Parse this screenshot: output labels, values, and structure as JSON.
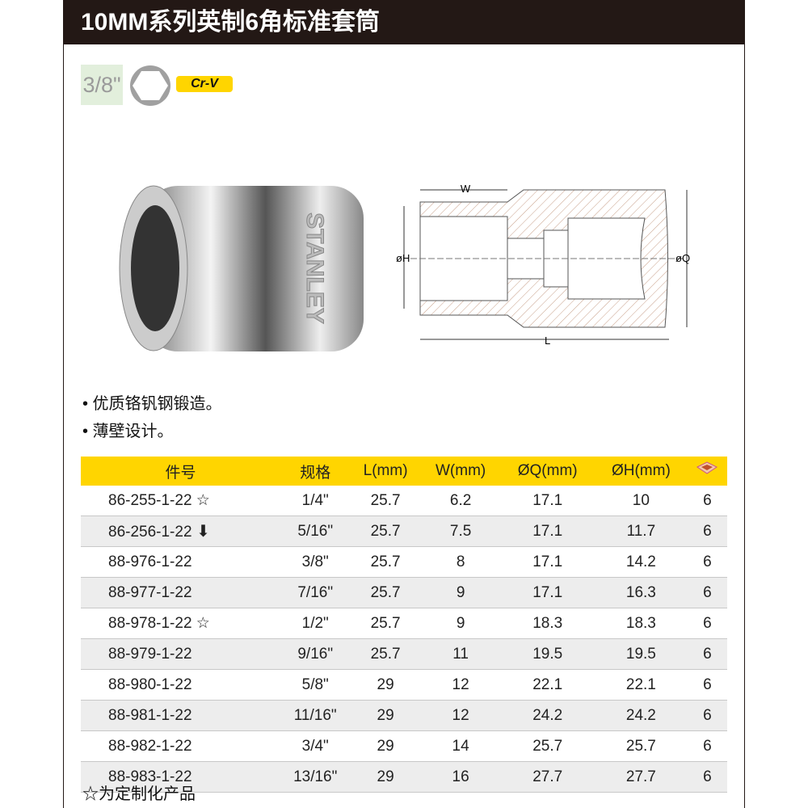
{
  "title": "10MM系列英制6角标准套筒",
  "drive_size": "3/8\"",
  "material_badge": "Cr-V",
  "features": [
    "• 优质铬钒钢锻造。",
    "• 薄壁设计。"
  ],
  "diagram_labels": {
    "w": "W",
    "h": "øH",
    "q": "øQ",
    "l": "L"
  },
  "brand": "STANLEY",
  "table": {
    "headers": [
      "件号",
      "规格",
      "L(mm)",
      "W(mm)",
      "ØQ(mm)",
      "ØH(mm)"
    ],
    "pack_icon": "box-icon",
    "rows": [
      [
        "86-255-1-22 ☆",
        "1/4\"",
        "25.7",
        "6.2",
        "17.1",
        "10",
        "6"
      ],
      [
        "86-256-1-22",
        "5/16\"",
        "25.7",
        "7.5",
        "17.1",
        "11.7",
        "6"
      ],
      [
        "88-976-1-22",
        "3/8\"",
        "25.7",
        "8",
        "17.1",
        "14.2",
        "6"
      ],
      [
        "88-977-1-22",
        "7/16\"",
        "25.7",
        "9",
        "17.1",
        "16.3",
        "6"
      ],
      [
        "88-978-1-22 ☆",
        "1/2\"",
        "25.7",
        "9",
        "18.3",
        "18.3",
        "6"
      ],
      [
        "88-979-1-22",
        "9/16\"",
        "25.7",
        "11",
        "19.5",
        "19.5",
        "6"
      ],
      [
        "88-980-1-22",
        "5/8\"",
        "29",
        "12",
        "22.1",
        "22.1",
        "6"
      ],
      [
        "88-981-1-22",
        "11/16\"",
        "29",
        "12",
        "24.2",
        "24.2",
        "6"
      ],
      [
        "88-982-1-22",
        "3/4\"",
        "29",
        "14",
        "25.7",
        "25.7",
        "6"
      ],
      [
        "88-983-1-22",
        "13/16\"",
        "29",
        "16",
        "27.7",
        "27.7",
        "6"
      ]
    ]
  },
  "footnote": "☆为定制化产品"
}
